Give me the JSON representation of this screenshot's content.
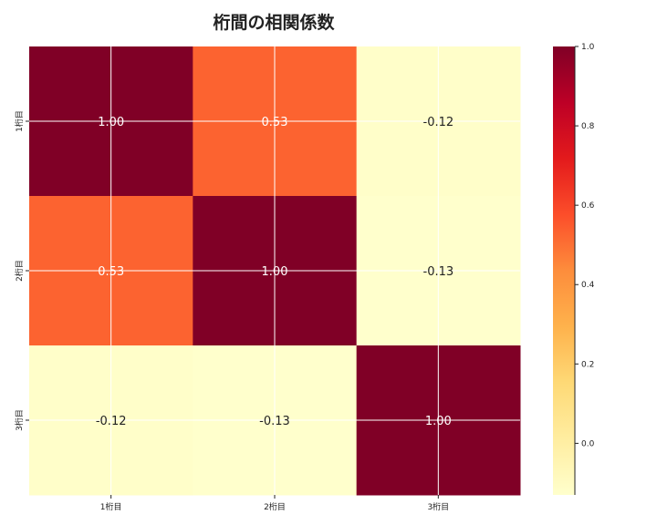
{
  "chart_data": {
    "type": "heatmap",
    "title": "桁間の相関係数",
    "x_categories": [
      "1桁目",
      "2桁目",
      "3桁目"
    ],
    "y_categories": [
      "1桁目",
      "2桁目",
      "3桁目"
    ],
    "values": [
      [
        1.0,
        0.53,
        -0.12
      ],
      [
        0.53,
        1.0,
        -0.13
      ],
      [
        -0.12,
        -0.13,
        1.0
      ]
    ],
    "value_labels": [
      [
        "1.00",
        "0.53",
        "-0.12"
      ],
      [
        "0.53",
        "1.00",
        "-0.13"
      ],
      [
        "-0.12",
        "-0.13",
        "1.00"
      ]
    ],
    "colorbar": {
      "range": [
        -0.13,
        1.0
      ],
      "ticks": [
        "1.0",
        "0.8",
        "0.6",
        "0.4",
        "0.2",
        "0.0"
      ],
      "tick_values": [
        1.0,
        0.8,
        0.6,
        0.4,
        0.2,
        0.0
      ],
      "colormap": "YlOrRd"
    },
    "grid": true,
    "colors": {
      "low": "#ffffcc",
      "high": "#800026"
    }
  }
}
